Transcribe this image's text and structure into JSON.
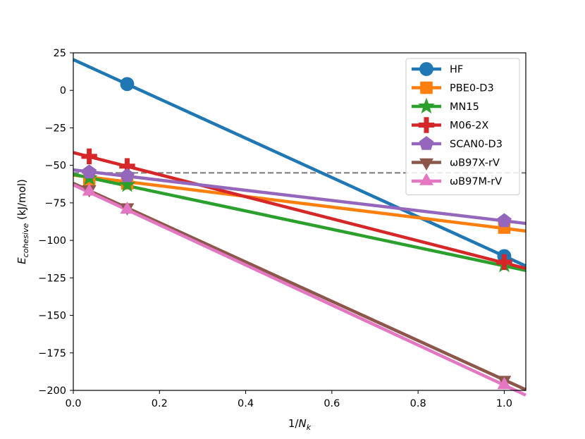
{
  "chart_data": {
    "type": "line",
    "title": "",
    "xlabel_prefix": "1/",
    "xlabel_symbol": "N",
    "xlabel_sub": "k",
    "ylabel_symbol": "E",
    "ylabel_sub": "cohesive",
    "ylabel_suffix": " (kJ/mol)",
    "xlim": [
      0.0,
      1.05
    ],
    "ylim": [
      -200,
      25
    ],
    "xticks": [
      0.0,
      0.2,
      0.4,
      0.6,
      0.8,
      1.0
    ],
    "xtick_labels": [
      "0.0",
      "0.2",
      "0.4",
      "0.6",
      "0.8",
      "1.0"
    ],
    "yticks": [
      25,
      0,
      -25,
      -50,
      -75,
      -100,
      -125,
      -150,
      -175,
      -200
    ],
    "ytick_labels": [
      "25",
      "0",
      "−25",
      "−50",
      "−75",
      "−100",
      "−125",
      "−150",
      "−175",
      "−200"
    ],
    "grid": false,
    "legend_position": "top-right",
    "reference_line": {
      "y": -55,
      "style": "dashed",
      "color": "#808080"
    },
    "series": [
      {
        "name": "HF",
        "color": "#1f77b4",
        "marker": "circle",
        "fit": {
          "intercept": 20.5,
          "slope": -131.0
        },
        "points": [
          {
            "x": 0.125,
            "y": 4.2
          },
          {
            "x": 1.0,
            "y": -110.5
          }
        ]
      },
      {
        "name": "PBE0-D3",
        "color": "#ff7f0e",
        "marker": "square",
        "fit": {
          "intercept": -56.5,
          "slope": -35.5
        },
        "points": [
          {
            "x": 0.037,
            "y": -60.0
          },
          {
            "x": 0.125,
            "y": -62.0
          },
          {
            "x": 1.0,
            "y": -91.5
          }
        ]
      },
      {
        "name": "MN15",
        "color": "#2ca02c",
        "marker": "star",
        "fit": {
          "intercept": -56.0,
          "slope": -61.0
        },
        "points": [
          {
            "x": 0.037,
            "y": -58.5
          },
          {
            "x": 0.125,
            "y": -63.0
          },
          {
            "x": 1.0,
            "y": -116.5
          }
        ]
      },
      {
        "name": "M06-2X",
        "color": "#d62728",
        "marker": "plus",
        "fit": {
          "intercept": -41.5,
          "slope": -73.5
        },
        "points": [
          {
            "x": 0.037,
            "y": -44.0
          },
          {
            "x": 0.125,
            "y": -50.5
          },
          {
            "x": 1.0,
            "y": -114.5
          }
        ]
      },
      {
        "name": "SCAN0-D3",
        "color": "#9467bd",
        "marker": "pentagon",
        "fit": {
          "intercept": -53.0,
          "slope": -34.0
        },
        "points": [
          {
            "x": 0.037,
            "y": -54.5
          },
          {
            "x": 0.125,
            "y": -57.0
          },
          {
            "x": 1.0,
            "y": -87.0
          }
        ]
      },
      {
        "name": "ωB97X-rV",
        "color": "#8c564b",
        "marker": "triangle-down",
        "fit": {
          "intercept": -62.0,
          "slope": -131.0
        },
        "points": [
          {
            "x": 0.037,
            "y": -66.0
          },
          {
            "x": 0.125,
            "y": -78.0
          },
          {
            "x": 1.0,
            "y": -193.0
          }
        ]
      },
      {
        "name": "ωB97M-rV",
        "color": "#e377c2",
        "marker": "triangle-up",
        "fit": {
          "intercept": -63.0,
          "slope": -133.5
        },
        "points": [
          {
            "x": 0.037,
            "y": -67.5
          },
          {
            "x": 0.125,
            "y": -79.5
          },
          {
            "x": 1.0,
            "y": -196.5
          }
        ]
      }
    ]
  }
}
